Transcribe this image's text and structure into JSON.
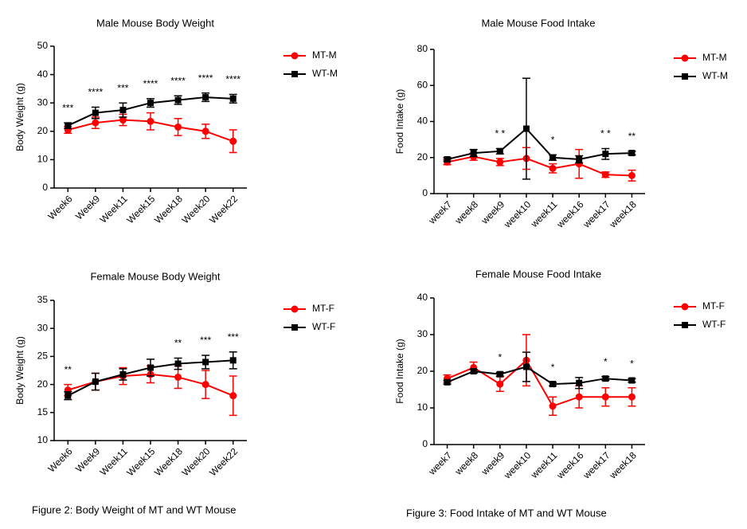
{
  "chart_data": [
    {
      "type": "line",
      "title": "Male Mouse Body Weight",
      "ylabel": "Body Weight (g)",
      "categories": [
        "Week6",
        "Week9",
        "Week11",
        "Week15",
        "Week18",
        "Week20",
        "Week22"
      ],
      "ylim": [
        0,
        50
      ],
      "yticks": [
        0,
        10,
        20,
        30,
        40,
        50
      ],
      "series": [
        {
          "name": "MT-M",
          "color": "#ff0000",
          "marker": "circle",
          "values": [
            20.5,
            23,
            24,
            23.5,
            21.5,
            20,
            16.5
          ],
          "errors": [
            1.2,
            2,
            2,
            3,
            3,
            2.5,
            4
          ]
        },
        {
          "name": "WT-M",
          "color": "#000000",
          "marker": "square",
          "values": [
            22,
            26.5,
            27.5,
            30,
            31,
            32,
            31.5
          ],
          "errors": [
            1,
            2,
            2.5,
            1.5,
            1.5,
            1.5,
            1.5
          ]
        }
      ],
      "significance": [
        "***",
        "****",
        "***",
        "****",
        "****",
        "****",
        "****"
      ]
    },
    {
      "type": "line",
      "title": "Male Mouse Food Intake",
      "ylabel": "Food Intake (g)",
      "categories": [
        "week7",
        "week8",
        "week9",
        "week10",
        "week11",
        "week16",
        "week17",
        "week18"
      ],
      "ylim": [
        0,
        80
      ],
      "yticks": [
        0,
        20,
        40,
        60,
        80
      ],
      "series": [
        {
          "name": "MT-M",
          "color": "#ff0000",
          "marker": "circle",
          "values": [
            17.5,
            20.5,
            17.5,
            19.5,
            14,
            16.5,
            10.5,
            10
          ],
          "errors": [
            1.5,
            2,
            2,
            6,
            2.5,
            8,
            1.5,
            3
          ]
        },
        {
          "name": "WT-M",
          "color": "#000000",
          "marker": "square",
          "values": [
            19,
            22.5,
            23.5,
            36,
            20,
            19,
            22,
            22.5
          ],
          "errors": [
            1,
            2,
            1.5,
            28,
            1.5,
            2,
            3,
            1
          ]
        }
      ],
      "significance": [
        null,
        null,
        "* *",
        null,
        "*",
        null,
        "* *",
        "**"
      ]
    },
    {
      "type": "line",
      "title": "Female Mouse Body Weight",
      "ylabel": "Body Weight (g)",
      "categories": [
        "Week6",
        "Week9",
        "Week11",
        "Week15",
        "Week18",
        "Week20",
        "Week22"
      ],
      "ylim": [
        10,
        35
      ],
      "yticks": [
        10,
        15,
        20,
        25,
        30,
        35
      ],
      "series": [
        {
          "name": "MT-F",
          "color": "#ff0000",
          "marker": "circle",
          "values": [
            19,
            20.5,
            21.5,
            21.8,
            21.3,
            20,
            18
          ],
          "errors": [
            1,
            1.5,
            1.5,
            1.5,
            2,
            2.5,
            3.5
          ]
        },
        {
          "name": "WT-F",
          "color": "#000000",
          "marker": "square",
          "values": [
            18,
            20.5,
            21.8,
            23,
            23.7,
            24,
            24.3
          ],
          "errors": [
            0.7,
            1.5,
            1,
            1.5,
            1,
            1.2,
            1.5
          ]
        }
      ],
      "significance": [
        "**",
        null,
        null,
        null,
        "**",
        "***",
        "***"
      ]
    },
    {
      "type": "line",
      "title": "Female Mouse Food Intake",
      "ylabel": "Food Intake (g)",
      "categories": [
        "week7",
        "week8",
        "week9",
        "week10",
        "week11",
        "week16",
        "week17",
        "week18"
      ],
      "ylim": [
        0,
        40
      ],
      "yticks": [
        0,
        10,
        20,
        30,
        40
      ],
      "series": [
        {
          "name": "MT-F",
          "color": "#ff0000",
          "marker": "circle",
          "values": [
            18,
            21,
            16.5,
            23,
            10.5,
            13,
            13,
            13
          ],
          "errors": [
            1,
            1.5,
            2,
            7,
            2.5,
            3,
            2.5,
            2.5
          ]
        },
        {
          "name": "WT-F",
          "color": "#000000",
          "marker": "square",
          "values": [
            17,
            20,
            19.2,
            21.2,
            16.5,
            16.8,
            18,
            17.5
          ],
          "errors": [
            0.5,
            0.5,
            0.5,
            4,
            0.5,
            1.5,
            0.5,
            0.5
          ]
        }
      ],
      "significance": [
        null,
        null,
        "*",
        null,
        "*",
        null,
        "*",
        "*"
      ]
    }
  ],
  "captions": [
    "Figure 2: Body Weight of MT and WT Mouse",
    "Figure 3: Food Intake of MT and WT Mouse"
  ]
}
